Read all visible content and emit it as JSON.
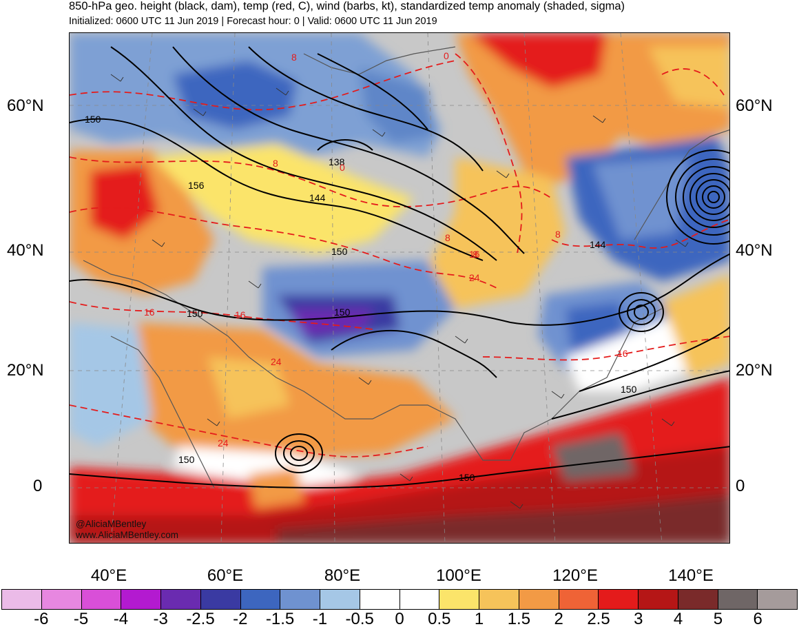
{
  "header": {
    "title": "850-hPa geo. height (black, dam), temp (red, C), wind (barbs, kt), standardized temp anomaly (shaded, sigma)",
    "subtitle": "Initialized: 0600 UTC 11 Jun 2019 | Forecast hour: 0 | Valid: 0600 UTC 11 Jun 2019"
  },
  "axes": {
    "lat_labels": [
      "60°N",
      "40°N",
      "20°N",
      "0"
    ],
    "lon_labels": [
      "40°E",
      "60°E",
      "80°E",
      "100°E",
      "120°E",
      "140°E"
    ]
  },
  "contour_labels": {
    "height": [
      "150",
      "156",
      "138",
      "144",
      "150",
      "150",
      "150",
      "150",
      "144",
      "150",
      "150"
    ],
    "temp": [
      "8",
      "0",
      "8",
      "0",
      "8",
      "16",
      "16",
      "8",
      "8",
      "16",
      "24",
      "24",
      "24",
      "16"
    ]
  },
  "credit": {
    "handle": "@AliciaMBentley",
    "site": "www.AliciaMBentley.com"
  },
  "colorbar": {
    "colors": [
      "#ebbbe8",
      "#e787e0",
      "#d94fd8",
      "#b31ad0",
      "#6a2bb0",
      "#3a3aa2",
      "#3d66bf",
      "#6f92d0",
      "#a5c7e6",
      "#ffffff",
      "#ffffff",
      "#fbe46a",
      "#f6c35a",
      "#f29a45",
      "#ef6336",
      "#e41b1b",
      "#b51616",
      "#7a2a2a",
      "#6f6666",
      "#a59b9b"
    ],
    "labels": [
      "-6",
      "-5",
      "-4",
      "-3",
      "-2.5",
      "-2",
      "-1.5",
      "-1",
      "-0.5",
      "0",
      "0.5",
      "1",
      "1.5",
      "2",
      "2.5",
      "3",
      "4",
      "5",
      "6"
    ]
  }
}
